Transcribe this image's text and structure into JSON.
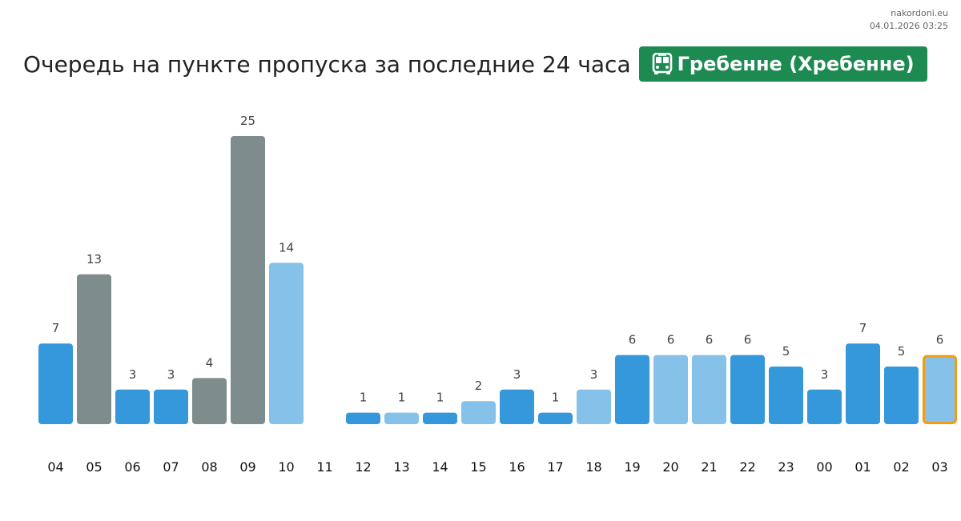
{
  "meta": {
    "site": "nakordoni.eu",
    "timestamp": "04.01.2026 03:25"
  },
  "header": {
    "title": "Очередь на пункте пропуска за последние 24 часа",
    "checkpoint": "Гребенне (Хребенне)",
    "checkpoint_icon": "bus-icon"
  },
  "colors": {
    "bar_dark_blue": "#3498db",
    "bar_light_blue": "#85c1e9",
    "bar_gray": "#7f8c8d",
    "highlight_border": "#f39c12",
    "badge_green": "#1d8a52"
  },
  "chart_data": {
    "type": "bar",
    "title": "Очередь на пункте пропуска за последние 24 часа",
    "xlabel": "",
    "ylabel": "",
    "categories": [
      "04",
      "05",
      "06",
      "07",
      "08",
      "09",
      "10",
      "11",
      "12",
      "13",
      "14",
      "15",
      "16",
      "17",
      "18",
      "19",
      "20",
      "21",
      "22",
      "23",
      "00",
      "01",
      "02",
      "03"
    ],
    "values": [
      7,
      13,
      3,
      3,
      4,
      25,
      14,
      null,
      1,
      1,
      1,
      2,
      3,
      1,
      3,
      6,
      6,
      6,
      6,
      5,
      3,
      7,
      5,
      6
    ],
    "bar_colors": [
      "dark_blue",
      "gray",
      "dark_blue",
      "dark_blue",
      "gray",
      "gray",
      "light_blue",
      null,
      "dark_blue",
      "light_blue",
      "dark_blue",
      "light_blue",
      "dark_blue",
      "dark_blue",
      "light_blue",
      "dark_blue",
      "light_blue",
      "light_blue",
      "dark_blue",
      "dark_blue",
      "dark_blue",
      "dark_blue",
      "dark_blue",
      "light_blue"
    ],
    "highlighted_category": "03",
    "ylim": [
      0,
      25
    ],
    "data_labels": true,
    "grid": false,
    "legend": "none"
  }
}
